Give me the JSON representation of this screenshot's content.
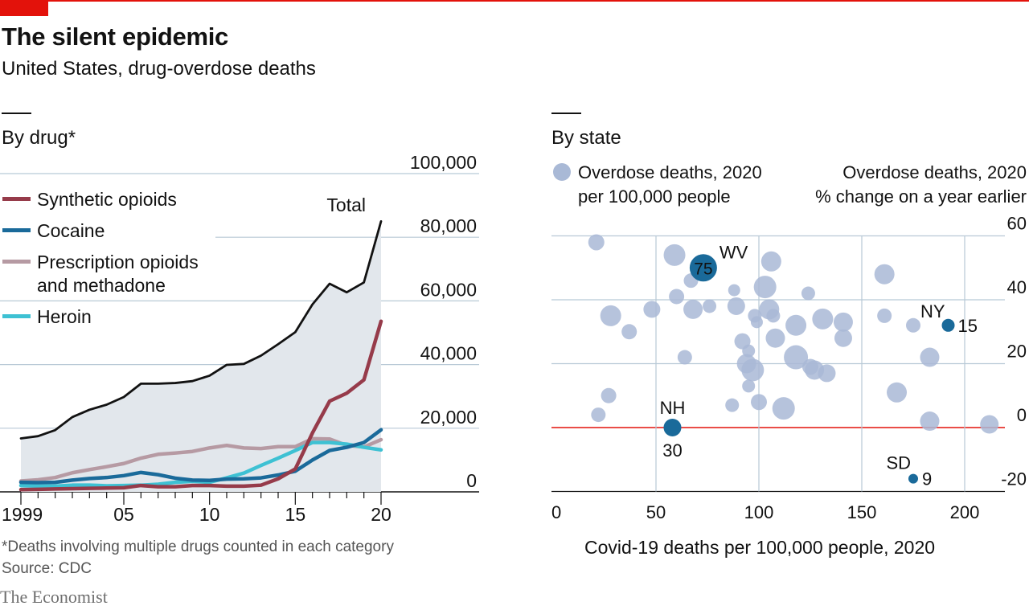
{
  "header": {
    "title": "The silent epidemic",
    "subtitle": "United States, drug-overdose deaths"
  },
  "footer": {
    "note": "*Deaths involving multiple drugs counted in each category",
    "source": "Source: CDC",
    "brand": "The Economist"
  },
  "colors": {
    "accent": "#e3120b",
    "synthetic": "#963b4a",
    "cocaine": "#1a6a9a",
    "prescription": "#b69aa3",
    "heroin": "#3ec1d3",
    "total": "#121212",
    "area": "#e2e7ec",
    "bubble": "#a9b9d6",
    "highlight": "#1a6a9a",
    "grid": "#b8c9d6"
  },
  "chart_data": [
    {
      "type": "line",
      "panel_title": "By drug*",
      "x": [
        1999,
        2000,
        2001,
        2002,
        2003,
        2004,
        2005,
        2006,
        2007,
        2008,
        2009,
        2010,
        2011,
        2012,
        2013,
        2014,
        2015,
        2016,
        2017,
        2018,
        2019,
        2020
      ],
      "x_tick_labels": [
        "1999",
        "05",
        "10",
        "15",
        "20"
      ],
      "x_tick_values": [
        1999,
        2005,
        2010,
        2015,
        2020
      ],
      "ylim": [
        0,
        100000
      ],
      "y_ticks": [
        0,
        20000,
        40000,
        60000,
        80000,
        100000
      ],
      "y_tick_labels": [
        "0",
        "20,000",
        "40,000",
        "60,000",
        "80,000",
        "100,000"
      ],
      "total": {
        "name": "Total",
        "values": [
          16800,
          17500,
          19400,
          23500,
          25800,
          27400,
          29800,
          34000,
          34000,
          34200,
          34800,
          36500,
          39900,
          40200,
          42800,
          46400,
          50200,
          58900,
          65400,
          62700,
          65800,
          85000
        ]
      },
      "series": [
        {
          "name": "Synthetic opioids",
          "color_key": "synthetic",
          "values": [
            700,
            800,
            900,
            1000,
            1100,
            1200,
            1300,
            2000,
            1600,
            1600,
            2000,
            2000,
            1800,
            1800,
            2100,
            4100,
            7200,
            18500,
            28500,
            31000,
            35200,
            53600
          ]
        },
        {
          "name": "Cocaine",
          "color_key": "cocaine",
          "values": [
            3000,
            2900,
            3000,
            3700,
            4200,
            4500,
            5100,
            6100,
            5400,
            4300,
            3700,
            3600,
            4000,
            4100,
            4400,
            5300,
            6500,
            10000,
            13000,
            14000,
            15500,
            19500
          ]
        },
        {
          "name": "Prescription opioids and methadone",
          "color_key": "prescription",
          "values": [
            3400,
            3800,
            4500,
            6000,
            7000,
            7900,
            8900,
            10600,
            11800,
            12200,
            12700,
            13800,
            14600,
            13800,
            13600,
            14200,
            14200,
            16700,
            16600,
            14600,
            14100,
            16400
          ]
        },
        {
          "name": "Heroin",
          "color_key": "heroin",
          "values": [
            2000,
            1800,
            1800,
            2100,
            2100,
            1900,
            2000,
            2100,
            2400,
            3000,
            3300,
            3000,
            4400,
            5900,
            8300,
            10600,
            13000,
            15500,
            15500,
            15000,
            14000,
            13200
          ]
        }
      ],
      "legend_labels": [
        {
          "line1": "Synthetic opioids",
          "line2": ""
        },
        {
          "line1": "Cocaine",
          "line2": ""
        },
        {
          "line1": "Prescription opioids",
          "line2": "and methadone"
        },
        {
          "line1": "Heroin",
          "line2": ""
        }
      ]
    },
    {
      "type": "scatter",
      "panel_title": "By state",
      "legend": {
        "line1": "Overdose deaths, 2020",
        "line2": "per 100,000 people"
      },
      "ylabel_line1": "Overdose deaths, 2020",
      "ylabel_line2": "% change on a year earlier",
      "xlabel": "Covid-19 deaths per 100,000 people, 2020",
      "xlim": [
        0,
        230
      ],
      "ylim": [
        -20,
        60
      ],
      "x_ticks": [
        0,
        50,
        100,
        150,
        200
      ],
      "x_tick_labels": [
        "0",
        "50",
        "100",
        "150",
        "200"
      ],
      "y_ticks": [
        -20,
        0,
        20,
        40,
        60
      ],
      "y_tick_labels": [
        "-20",
        "0",
        "20",
        "40",
        "60"
      ],
      "points": [
        {
          "x": 21,
          "y": 58,
          "s": 20
        },
        {
          "x": 22,
          "y": 4,
          "s": 18
        },
        {
          "x": 27,
          "y": 10,
          "s": 19
        },
        {
          "x": 28,
          "y": 35,
          "s": 26
        },
        {
          "x": 37,
          "y": 30,
          "s": 19
        },
        {
          "x": 48,
          "y": 37,
          "s": 21
        },
        {
          "x": 59,
          "y": 54,
          "s": 27
        },
        {
          "x": 60,
          "y": 41,
          "s": 19
        },
        {
          "x": 64,
          "y": 22,
          "s": 18
        },
        {
          "x": 67,
          "y": 46,
          "s": 18
        },
        {
          "x": 68,
          "y": 37,
          "s": 24
        },
        {
          "x": 76,
          "y": 38,
          "s": 17
        },
        {
          "x": 88,
          "y": 43,
          "s": 15
        },
        {
          "x": 89,
          "y": 38,
          "s": 22
        },
        {
          "x": 87,
          "y": 7,
          "s": 17
        },
        {
          "x": 92,
          "y": 27,
          "s": 20
        },
        {
          "x": 95,
          "y": 24,
          "s": 16
        },
        {
          "x": 95,
          "y": 13,
          "s": 16
        },
        {
          "x": 94,
          "y": 20,
          "s": 24
        },
        {
          "x": 97,
          "y": 18,
          "s": 28
        },
        {
          "x": 98,
          "y": 35,
          "s": 17
        },
        {
          "x": 99,
          "y": 33,
          "s": 15
        },
        {
          "x": 100,
          "y": 8,
          "s": 20
        },
        {
          "x": 103,
          "y": 44,
          "s": 28
        },
        {
          "x": 106,
          "y": 52,
          "s": 25
        },
        {
          "x": 105,
          "y": 37,
          "s": 25
        },
        {
          "x": 107,
          "y": 35,
          "s": 17
        },
        {
          "x": 108,
          "y": 28,
          "s": 24
        },
        {
          "x": 112,
          "y": 6,
          "s": 28
        },
        {
          "x": 118,
          "y": 32,
          "s": 26
        },
        {
          "x": 118,
          "y": 22,
          "s": 30
        },
        {
          "x": 124,
          "y": 42,
          "s": 17
        },
        {
          "x": 125,
          "y": 19,
          "s": 20
        },
        {
          "x": 127,
          "y": 18,
          "s": 24
        },
        {
          "x": 131,
          "y": 34,
          "s": 26
        },
        {
          "x": 133,
          "y": 17,
          "s": 22
        },
        {
          "x": 141,
          "y": 33,
          "s": 24
        },
        {
          "x": 141,
          "y": 28,
          "s": 22
        },
        {
          "x": 161,
          "y": 48,
          "s": 25
        },
        {
          "x": 161,
          "y": 35,
          "s": 18
        },
        {
          "x": 167,
          "y": 11,
          "s": 25
        },
        {
          "x": 175,
          "y": 32,
          "s": 18
        },
        {
          "x": 183,
          "y": 22,
          "s": 24
        },
        {
          "x": 183,
          "y": 2,
          "s": 24
        },
        {
          "x": 212,
          "y": 1,
          "s": 23
        }
      ],
      "highlights": [
        {
          "state": "WV",
          "x": 73,
          "y": 50,
          "value": "75",
          "label_inside": true
        },
        {
          "state": "NH",
          "x": 58,
          "y": 0,
          "value": "30",
          "label_inside": false
        },
        {
          "state": "NY",
          "x": 192,
          "y": 32,
          "value": "15",
          "label_inside": false
        },
        {
          "state": "SD",
          "x": 175,
          "y": -16,
          "value": "9",
          "label_inside": false
        }
      ]
    }
  ]
}
